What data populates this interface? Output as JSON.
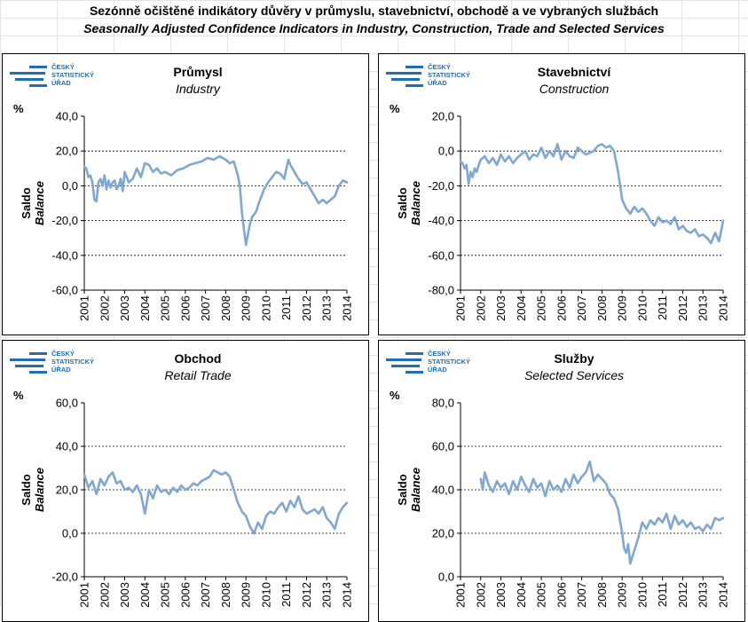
{
  "title_cs": "Sezónně očištěné indikátory důvěry v průmyslu, stavebnictví, obchodě a ve vybraných službách",
  "title_en": "Seasonally Adjusted Confidence Indicators in Industry, Construction, Trade and Selected Services",
  "logo": {
    "line1": "ČESKÝ",
    "line2": "STATISTICKÝ",
    "line3": "ÚŘAD"
  },
  "colors": {
    "series": "#7fa7d4",
    "logo": "#1f6fb5"
  },
  "chart_data": [
    {
      "type": "line",
      "title": "Průmysl",
      "subtitle": "Industry",
      "unit": "%",
      "ylabel": "Saldo",
      "ylabel_en": "Balance",
      "ylim": [
        -60,
        40
      ],
      "yticks": [
        -60,
        -40,
        -20,
        0,
        20,
        40
      ],
      "ytick_labels": [
        "-60,0",
        "-40,0",
        "-20,0",
        "0,0",
        "20,0",
        "40,0"
      ],
      "gridlines": [
        -40,
        -20,
        0,
        20
      ],
      "xlim": [
        2001,
        2014
      ],
      "xticks": [
        "2001",
        "2002",
        "2003",
        "2004",
        "2005",
        "2006",
        "2007",
        "2008",
        "2009",
        "2010",
        "2011",
        "2012",
        "2013",
        "2014"
      ],
      "series": [
        {
          "x": [
            2001.0,
            2001.1,
            2001.2,
            2001.3,
            2001.4,
            2001.5,
            2001.6,
            2001.7,
            2001.8,
            2001.9,
            2002.0,
            2002.1,
            2002.2,
            2002.3,
            2002.4,
            2002.5,
            2002.6,
            2002.7,
            2002.8,
            2002.9,
            2003.0,
            2003.2,
            2003.4,
            2003.6,
            2003.8,
            2004.0,
            2004.2,
            2004.4,
            2004.6,
            2004.8,
            2005.0,
            2005.3,
            2005.6,
            2005.9,
            2006.2,
            2006.5,
            2006.8,
            2007.1,
            2007.4,
            2007.7,
            2008.0,
            2008.2,
            2008.4,
            2008.5,
            2008.6,
            2008.7,
            2008.8,
            2008.9,
            2009.0,
            2009.1,
            2009.2,
            2009.3,
            2009.5,
            2009.7,
            2009.9,
            2010.1,
            2010.3,
            2010.5,
            2010.7,
            2010.9,
            2011.0,
            2011.1,
            2011.2,
            2011.4,
            2011.6,
            2011.8,
            2012.0,
            2012.2,
            2012.4,
            2012.6,
            2012.8,
            2013.0,
            2013.2,
            2013.4,
            2013.6,
            2013.8,
            2014.0
          ],
          "y": [
            11,
            10,
            5,
            6,
            2,
            -8,
            -9,
            2,
            4,
            0,
            6,
            -2,
            3,
            -1,
            2,
            3,
            -2,
            0,
            4,
            -3,
            8,
            2,
            4,
            10,
            5,
            13,
            12,
            8,
            10,
            7,
            8,
            6,
            9,
            10,
            12,
            13,
            14,
            16,
            15,
            17,
            15,
            13,
            14,
            10,
            6,
            0,
            -15,
            -25,
            -34,
            -28,
            -22,
            -18,
            -15,
            -8,
            -2,
            2,
            5,
            8,
            7,
            4,
            10,
            15,
            12,
            8,
            4,
            1,
            2,
            -2,
            -6,
            -10,
            -8,
            -10,
            -8,
            -6,
            0,
            3,
            2
          ]
        }
      ]
    },
    {
      "type": "line",
      "title": "Stavebnictví",
      "subtitle": "Construction",
      "unit": "%",
      "ylabel": "Saldo",
      "ylabel_en": "Balance",
      "ylim": [
        -80,
        20
      ],
      "yticks": [
        -80,
        -60,
        -40,
        -20,
        0,
        20
      ],
      "ytick_labels": [
        "-80,0",
        "-60,0",
        "-40,0",
        "-20,0",
        "0,0",
        "20,0"
      ],
      "gridlines": [
        -60,
        -40,
        -20,
        0
      ],
      "xlim": [
        2001,
        2014
      ],
      "xticks": [
        "2001",
        "2002",
        "2003",
        "2004",
        "2005",
        "2006",
        "2007",
        "2008",
        "2009",
        "2010",
        "2011",
        "2012",
        "2013",
        "2014"
      ],
      "series": [
        {
          "x": [
            2001.0,
            2001.1,
            2001.2,
            2001.3,
            2001.4,
            2001.5,
            2001.6,
            2001.7,
            2001.8,
            2001.9,
            2002.0,
            2002.2,
            2002.4,
            2002.6,
            2002.8,
            2003.0,
            2003.2,
            2003.4,
            2003.6,
            2003.8,
            2004.0,
            2004.2,
            2004.4,
            2004.6,
            2004.8,
            2005.0,
            2005.2,
            2005.4,
            2005.6,
            2005.8,
            2006.0,
            2006.2,
            2006.4,
            2006.6,
            2006.8,
            2007.0,
            2007.2,
            2007.4,
            2007.6,
            2007.8,
            2008.0,
            2008.2,
            2008.4,
            2008.6,
            2008.8,
            2009.0,
            2009.2,
            2009.4,
            2009.6,
            2009.8,
            2010.0,
            2010.2,
            2010.4,
            2010.6,
            2010.8,
            2011.0,
            2011.2,
            2011.4,
            2011.6,
            2011.8,
            2012.0,
            2012.2,
            2012.4,
            2012.6,
            2012.8,
            2013.0,
            2013.2,
            2013.4,
            2013.6,
            2013.8,
            2014.0
          ],
          "y": [
            -6,
            -7,
            -10,
            -8,
            -19,
            -12,
            -15,
            -10,
            -12,
            -8,
            -5,
            -3,
            -7,
            -4,
            -8,
            -2,
            -6,
            -3,
            -7,
            -4,
            -2,
            0,
            -5,
            -2,
            -3,
            2,
            -4,
            0,
            -3,
            4,
            -5,
            0,
            -3,
            -4,
            2,
            0,
            -2,
            -1,
            0,
            3,
            4,
            2,
            3,
            0,
            -12,
            -28,
            -33,
            -36,
            -32,
            -35,
            -33,
            -36,
            -40,
            -43,
            -38,
            -41,
            -40,
            -42,
            -38,
            -45,
            -43,
            -46,
            -47,
            -45,
            -49,
            -48,
            -50,
            -53,
            -47,
            -52,
            -40
          ]
        }
      ]
    },
    {
      "type": "line",
      "title": "Obchod",
      "subtitle": "Retail Trade",
      "unit": "%",
      "ylabel": "Saldo",
      "ylabel_en": "Balance",
      "ylim": [
        -20,
        60
      ],
      "yticks": [
        -20,
        0,
        20,
        40,
        60
      ],
      "ytick_labels": [
        "-20,0",
        "0,0",
        "20,0",
        "40,0",
        "60,0"
      ],
      "gridlines": [
        0,
        20,
        40
      ],
      "xlim": [
        2001,
        2014
      ],
      "xticks": [
        "2001",
        "2002",
        "2003",
        "2004",
        "2005",
        "2006",
        "2007",
        "2008",
        "2009",
        "2010",
        "2011",
        "2012",
        "2013",
        "2014"
      ],
      "series": [
        {
          "x": [
            2001.0,
            2001.2,
            2001.4,
            2001.6,
            2001.8,
            2002.0,
            2002.2,
            2002.4,
            2002.6,
            2002.8,
            2003.0,
            2003.2,
            2003.4,
            2003.6,
            2003.8,
            2004.0,
            2004.2,
            2004.4,
            2004.6,
            2004.8,
            2005.0,
            2005.2,
            2005.4,
            2005.6,
            2005.8,
            2006.0,
            2006.2,
            2006.4,
            2006.6,
            2006.8,
            2007.0,
            2007.2,
            2007.4,
            2007.6,
            2007.8,
            2008.0,
            2008.2,
            2008.4,
            2008.6,
            2008.8,
            2009.0,
            2009.2,
            2009.4,
            2009.6,
            2009.8,
            2010.0,
            2010.2,
            2010.4,
            2010.6,
            2010.8,
            2011.0,
            2011.2,
            2011.4,
            2011.6,
            2011.8,
            2012.0,
            2012.2,
            2012.4,
            2012.6,
            2012.8,
            2013.0,
            2013.2,
            2013.4,
            2013.6,
            2013.8,
            2014.0
          ],
          "y": [
            27,
            21,
            24,
            18,
            25,
            22,
            26,
            28,
            23,
            24,
            20,
            21,
            19,
            22,
            18,
            9,
            20,
            16,
            22,
            19,
            20,
            18,
            21,
            19,
            22,
            20,
            21,
            23,
            22,
            24,
            25,
            26,
            29,
            28,
            27,
            28,
            26,
            20,
            14,
            10,
            8,
            3,
            0,
            5,
            2,
            8,
            10,
            9,
            12,
            14,
            10,
            15,
            12,
            17,
            11,
            9,
            10,
            11,
            9,
            12,
            7,
            5,
            2,
            9,
            12,
            14
          ]
        }
      ]
    },
    {
      "type": "line",
      "title": "Služby",
      "subtitle": "Selected Services",
      "unit": "%",
      "ylabel": "Saldo",
      "ylabel_en": "Balance",
      "ylim": [
        0,
        80
      ],
      "yticks": [
        0,
        20,
        40,
        60,
        80
      ],
      "ytick_labels": [
        "0,0",
        "20,0",
        "40,0",
        "60,0",
        "80,0"
      ],
      "gridlines": [
        20,
        40,
        60
      ],
      "xlim": [
        2001,
        2014
      ],
      "xticks": [
        "2001",
        "2002",
        "2003",
        "2004",
        "2005",
        "2006",
        "2007",
        "2008",
        "2009",
        "2010",
        "2011",
        "2012",
        "2013",
        "2014"
      ],
      "series": [
        {
          "x": [
            2002.0,
            2002.1,
            2002.2,
            2002.4,
            2002.6,
            2002.8,
            2003.0,
            2003.2,
            2003.4,
            2003.6,
            2003.8,
            2004.0,
            2004.2,
            2004.4,
            2004.6,
            2004.8,
            2005.0,
            2005.2,
            2005.4,
            2005.6,
            2005.8,
            2006.0,
            2006.2,
            2006.4,
            2006.6,
            2006.8,
            2007.0,
            2007.2,
            2007.4,
            2007.6,
            2007.8,
            2008.0,
            2008.2,
            2008.4,
            2008.6,
            2008.8,
            2009.0,
            2009.1,
            2009.2,
            2009.3,
            2009.4,
            2009.5,
            2009.6,
            2009.8,
            2010.0,
            2010.2,
            2010.4,
            2010.6,
            2010.8,
            2011.0,
            2011.2,
            2011.4,
            2011.6,
            2011.8,
            2012.0,
            2012.2,
            2012.4,
            2012.6,
            2012.8,
            2013.0,
            2013.2,
            2013.4,
            2013.6,
            2013.8,
            2014.0
          ],
          "y": [
            45,
            40,
            48,
            42,
            39,
            44,
            41,
            43,
            38,
            44,
            40,
            46,
            42,
            39,
            45,
            41,
            43,
            37,
            44,
            40,
            42,
            39,
            45,
            41,
            47,
            43,
            46,
            48,
            53,
            44,
            47,
            45,
            43,
            38,
            36,
            31,
            20,
            13,
            11,
            15,
            6,
            9,
            12,
            18,
            25,
            22,
            26,
            24,
            27,
            25,
            29,
            22,
            28,
            24,
            26,
            23,
            25,
            22,
            23,
            21,
            24,
            22,
            27,
            26,
            27
          ]
        }
      ]
    }
  ]
}
